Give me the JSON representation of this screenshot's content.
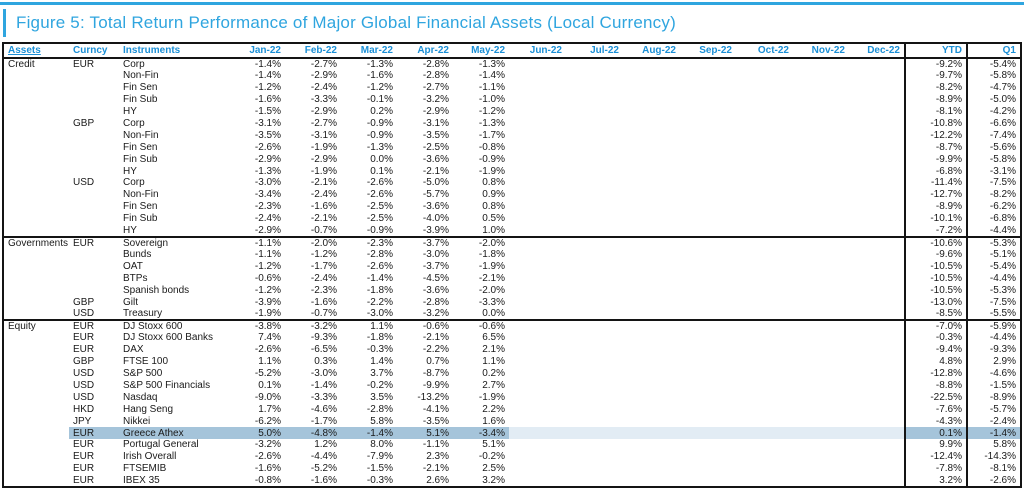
{
  "title": "Figure 5: Total Return Performance of Major Global Financial Assets (Local Currency)",
  "colors": {
    "accent": "#2fa5df",
    "header_blue": "#1b8fd6",
    "highlight": "#a5c4da",
    "highlight_faint": "#e2ecf4"
  },
  "table": {
    "headers": [
      "Assets",
      "Curncy",
      "Instruments",
      "Jan-22",
      "Feb-22",
      "Mar-22",
      "Apr-22",
      "May-22",
      "Jun-22",
      "Jul-22",
      "Aug-22",
      "Sep-22",
      "Oct-22",
      "Nov-22",
      "Dec-22",
      "YTD",
      "Q1"
    ],
    "sections": [
      {
        "name": "Credit",
        "rows": [
          {
            "curncy": "EUR",
            "instrument": "Corp",
            "months": [
              "-1.4%",
              "-2.7%",
              "-1.3%",
              "-2.8%",
              "-1.3%"
            ],
            "ytd": "-9.2%",
            "q1": "-5.4%"
          },
          {
            "curncy": "",
            "instrument": "Non-Fin",
            "months": [
              "-1.4%",
              "-2.9%",
              "-1.6%",
              "-2.8%",
              "-1.4%"
            ],
            "ytd": "-9.7%",
            "q1": "-5.8%"
          },
          {
            "curncy": "",
            "instrument": "Fin Sen",
            "months": [
              "-1.2%",
              "-2.4%",
              "-1.2%",
              "-2.7%",
              "-1.1%"
            ],
            "ytd": "-8.2%",
            "q1": "-4.7%"
          },
          {
            "curncy": "",
            "instrument": "Fin Sub",
            "months": [
              "-1.6%",
              "-3.3%",
              "-0.1%",
              "-3.2%",
              "-1.0%"
            ],
            "ytd": "-8.9%",
            "q1": "-5.0%"
          },
          {
            "curncy": "",
            "instrument": "HY",
            "months": [
              "-1.5%",
              "-2.9%",
              "0.2%",
              "-2.9%",
              "-1.2%"
            ],
            "ytd": "-8.1%",
            "q1": "-4.2%"
          },
          {
            "curncy": "GBP",
            "instrument": "Corp",
            "months": [
              "-3.1%",
              "-2.7%",
              "-0.9%",
              "-3.1%",
              "-1.3%"
            ],
            "ytd": "-10.8%",
            "q1": "-6.6%"
          },
          {
            "curncy": "",
            "instrument": "Non-Fin",
            "months": [
              "-3.5%",
              "-3.1%",
              "-0.9%",
              "-3.5%",
              "-1.7%"
            ],
            "ytd": "-12.2%",
            "q1": "-7.4%"
          },
          {
            "curncy": "",
            "instrument": "Fin Sen",
            "months": [
              "-2.6%",
              "-1.9%",
              "-1.3%",
              "-2.5%",
              "-0.8%"
            ],
            "ytd": "-8.7%",
            "q1": "-5.6%"
          },
          {
            "curncy": "",
            "instrument": "Fin Sub",
            "months": [
              "-2.9%",
              "-2.9%",
              "0.0%",
              "-3.6%",
              "-0.9%"
            ],
            "ytd": "-9.9%",
            "q1": "-5.8%"
          },
          {
            "curncy": "",
            "instrument": "HY",
            "months": [
              "-1.3%",
              "-1.9%",
              "0.1%",
              "-2.1%",
              "-1.9%"
            ],
            "ytd": "-6.8%",
            "q1": "-3.1%"
          },
          {
            "curncy": "USD",
            "instrument": "Corp",
            "months": [
              "-3.0%",
              "-2.1%",
              "-2.6%",
              "-5.0%",
              "0.8%"
            ],
            "ytd": "-11.4%",
            "q1": "-7.5%"
          },
          {
            "curncy": "",
            "instrument": "Non-Fin",
            "months": [
              "-3.4%",
              "-2.4%",
              "-2.6%",
              "-5.7%",
              "0.9%"
            ],
            "ytd": "-12.7%",
            "q1": "-8.2%"
          },
          {
            "curncy": "",
            "instrument": "Fin Sen",
            "months": [
              "-2.3%",
              "-1.6%",
              "-2.5%",
              "-3.6%",
              "0.8%"
            ],
            "ytd": "-8.9%",
            "q1": "-6.2%"
          },
          {
            "curncy": "",
            "instrument": "Fin Sub",
            "months": [
              "-2.4%",
              "-2.1%",
              "-2.5%",
              "-4.0%",
              "0.5%"
            ],
            "ytd": "-10.1%",
            "q1": "-6.8%"
          },
          {
            "curncy": "",
            "instrument": "HY",
            "months": [
              "-2.9%",
              "-0.7%",
              "-0.9%",
              "-3.9%",
              "1.0%"
            ],
            "ytd": "-7.2%",
            "q1": "-4.4%"
          }
        ]
      },
      {
        "name": "Governments",
        "rows": [
          {
            "curncy": "EUR",
            "instrument": "Sovereign",
            "months": [
              "-1.1%",
              "-2.0%",
              "-2.3%",
              "-3.7%",
              "-2.0%"
            ],
            "ytd": "-10.6%",
            "q1": "-5.3%"
          },
          {
            "curncy": "",
            "instrument": "Bunds",
            "months": [
              "-1.1%",
              "-1.2%",
              "-2.8%",
              "-3.0%",
              "-1.8%"
            ],
            "ytd": "-9.6%",
            "q1": "-5.1%"
          },
          {
            "curncy": "",
            "instrument": "OAT",
            "months": [
              "-1.2%",
              "-1.7%",
              "-2.6%",
              "-3.7%",
              "-1.9%"
            ],
            "ytd": "-10.5%",
            "q1": "-5.4%"
          },
          {
            "curncy": "",
            "instrument": "BTPs",
            "months": [
              "-0.6%",
              "-2.4%",
              "-1.4%",
              "-4.5%",
              "-2.1%"
            ],
            "ytd": "-10.5%",
            "q1": "-4.4%"
          },
          {
            "curncy": "",
            "instrument": "Spanish bonds",
            "months": [
              "-1.2%",
              "-2.3%",
              "-1.8%",
              "-3.6%",
              "-2.0%"
            ],
            "ytd": "-10.5%",
            "q1": "-5.3%"
          },
          {
            "curncy": "GBP",
            "instrument": "Gilt",
            "months": [
              "-3.9%",
              "-1.6%",
              "-2.2%",
              "-2.8%",
              "-3.3%"
            ],
            "ytd": "-13.0%",
            "q1": "-7.5%"
          },
          {
            "curncy": "USD",
            "instrument": "Treasury",
            "months": [
              "-1.9%",
              "-0.7%",
              "-3.0%",
              "-3.2%",
              "0.0%"
            ],
            "ytd": "-8.5%",
            "q1": "-5.5%"
          }
        ]
      },
      {
        "name": "Equity",
        "rows": [
          {
            "curncy": "EUR",
            "instrument": "DJ Stoxx 600",
            "months": [
              "-3.8%",
              "-3.2%",
              "1.1%",
              "-0.6%",
              "-0.6%"
            ],
            "ytd": "-7.0%",
            "q1": "-5.9%"
          },
          {
            "curncy": "EUR",
            "instrument": "DJ Stoxx 600 Banks",
            "months": [
              "7.4%",
              "-9.3%",
              "-1.8%",
              "-2.1%",
              "6.5%"
            ],
            "ytd": "-0.3%",
            "q1": "-4.4%"
          },
          {
            "curncy": "EUR",
            "instrument": "DAX",
            "months": [
              "-2.6%",
              "-6.5%",
              "-0.3%",
              "-2.2%",
              "2.1%"
            ],
            "ytd": "-9.4%",
            "q1": "-9.3%"
          },
          {
            "curncy": "GBP",
            "instrument": "FTSE 100",
            "months": [
              "1.1%",
              "0.3%",
              "1.4%",
              "0.7%",
              "1.1%"
            ],
            "ytd": "4.8%",
            "q1": "2.9%"
          },
          {
            "curncy": "USD",
            "instrument": "S&P 500",
            "months": [
              "-5.2%",
              "-3.0%",
              "3.7%",
              "-8.7%",
              "0.2%"
            ],
            "ytd": "-12.8%",
            "q1": "-4.6%"
          },
          {
            "curncy": "USD",
            "instrument": "S&P 500 Financials",
            "months": [
              "0.1%",
              "-1.4%",
              "-0.2%",
              "-9.9%",
              "2.7%"
            ],
            "ytd": "-8.8%",
            "q1": "-1.5%"
          },
          {
            "curncy": "USD",
            "instrument": "Nasdaq",
            "months": [
              "-9.0%",
              "-3.3%",
              "3.5%",
              "-13.2%",
              "-1.9%"
            ],
            "ytd": "-22.5%",
            "q1": "-8.9%"
          },
          {
            "curncy": "HKD",
            "instrument": "Hang Seng",
            "months": [
              "1.7%",
              "-4.6%",
              "-2.8%",
              "-4.1%",
              "2.2%"
            ],
            "ytd": "-7.6%",
            "q1": "-5.7%"
          },
          {
            "curncy": "JPY",
            "instrument": "Nikkei",
            "months": [
              "-6.2%",
              "-1.7%",
              "5.8%",
              "-3.5%",
              "1.6%"
            ],
            "ytd": "-4.3%",
            "q1": "-2.4%"
          },
          {
            "curncy": "EUR",
            "instrument": "Greece Athex",
            "months": [
              "5.0%",
              "-4.8%",
              "-1.4%",
              "5.1%",
              "-3.4%"
            ],
            "ytd": "0.1%",
            "q1": "-1.4%",
            "highlight": true
          },
          {
            "curncy": "EUR",
            "instrument": "Portugal General",
            "months": [
              "-3.2%",
              "1.2%",
              "8.0%",
              "-1.1%",
              "5.1%"
            ],
            "ytd": "9.9%",
            "q1": "5.8%"
          },
          {
            "curncy": "EUR",
            "instrument": "Irish Overall",
            "months": [
              "-2.6%",
              "-4.4%",
              "-7.9%",
              "2.3%",
              "-0.2%"
            ],
            "ytd": "-12.4%",
            "q1": "-14.3%"
          },
          {
            "curncy": "EUR",
            "instrument": "FTSEMIB",
            "months": [
              "-1.6%",
              "-5.2%",
              "-1.5%",
              "-2.1%",
              "2.5%"
            ],
            "ytd": "-7.8%",
            "q1": "-8.1%"
          },
          {
            "curncy": "EUR",
            "instrument": "IBEX 35",
            "months": [
              "-0.8%",
              "-1.6%",
              "-0.3%",
              "2.6%",
              "3.2%"
            ],
            "ytd": "3.2%",
            "q1": "-2.6%"
          }
        ]
      }
    ]
  }
}
